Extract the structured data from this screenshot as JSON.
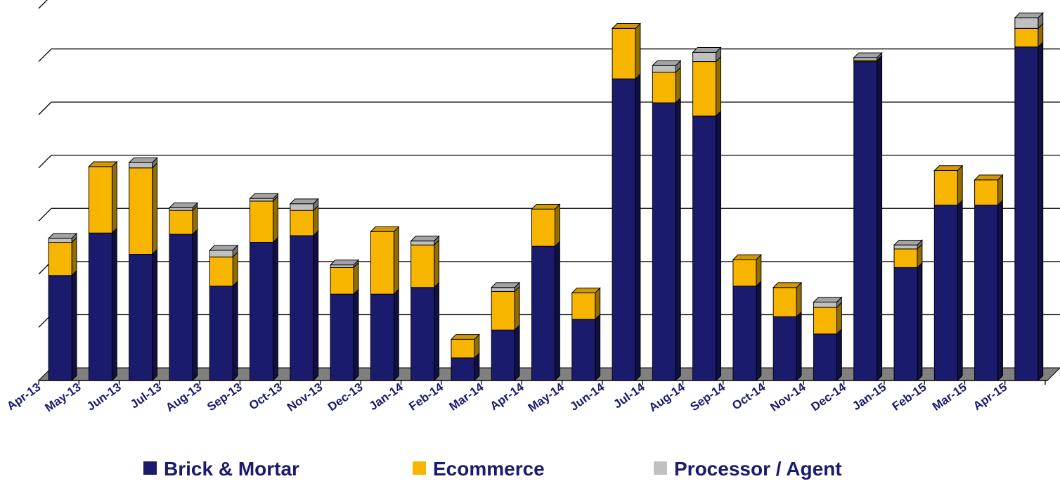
{
  "colors": {
    "brick_mortar": "#1b1b6e",
    "ecommerce": "#f7b500",
    "processor_agent": "#c0c0c0",
    "floor": "#808080"
  },
  "chart_data": {
    "type": "bar",
    "stacked": true,
    "three_d": true,
    "title": "",
    "xlabel": "",
    "ylabel": "",
    "y_tick_labels_shown": false,
    "ylim": [
      0,
      140
    ],
    "grid": true,
    "legend_position": "bottom",
    "categories": [
      "Apr-13",
      "May-13",
      "Jun-13",
      "Jul-13",
      "Aug-13",
      "Sep-13",
      "Oct-13",
      "Nov-13",
      "Dec-13",
      "Jan-14",
      "Feb-14",
      "Mar-14",
      "Apr-14",
      "May-14",
      "Jun-14",
      "Jul-14",
      "Aug-14",
      "Sep-14",
      "Oct-14",
      "Nov-14",
      "Dec-14",
      "Jan-15",
      "Feb-15",
      "Mar-15",
      "Apr-15"
    ],
    "series": [
      {
        "name": "Brick & Mortar",
        "color": "#1b1b6e",
        "values": [
          39.5,
          55.5,
          47.5,
          55.0,
          35.5,
          52.0,
          54.5,
          32.5,
          32.5,
          35.0,
          8.5,
          19.0,
          50.5,
          23.0,
          113.5,
          104.5,
          99.5,
          35.5,
          24.0,
          17.5,
          120.0,
          42.5,
          66.0,
          66.0,
          125.5
        ]
      },
      {
        "name": "Ecommerce",
        "color": "#f7b500",
        "values": [
          12.5,
          25.0,
          32.5,
          9.0,
          11.0,
          15.5,
          9.5,
          10.0,
          23.5,
          16.0,
          7.0,
          14.5,
          14.0,
          10.0,
          19.0,
          11.5,
          20.5,
          10.0,
          11.0,
          10.0,
          0.5,
          7.0,
          13.0,
          9.5,
          7.0
        ]
      },
      {
        "name": "Processor / Agent",
        "color": "#c0c0c0",
        "values": [
          1.5,
          0,
          2.0,
          1.0,
          2.5,
          1.0,
          2.5,
          1.0,
          0,
          1.5,
          0,
          1.5,
          0,
          0,
          0,
          2.5,
          3.5,
          0,
          0,
          2.0,
          1.0,
          1.5,
          0,
          0,
          4.0
        ]
      }
    ]
  },
  "legend": {
    "items": [
      {
        "label": "Brick & Mortar",
        "color": "#1b1b6e"
      },
      {
        "label": "Ecommerce",
        "color": "#f7b500"
      },
      {
        "label": "Processor / Agent",
        "color": "#c0c0c0"
      }
    ]
  }
}
